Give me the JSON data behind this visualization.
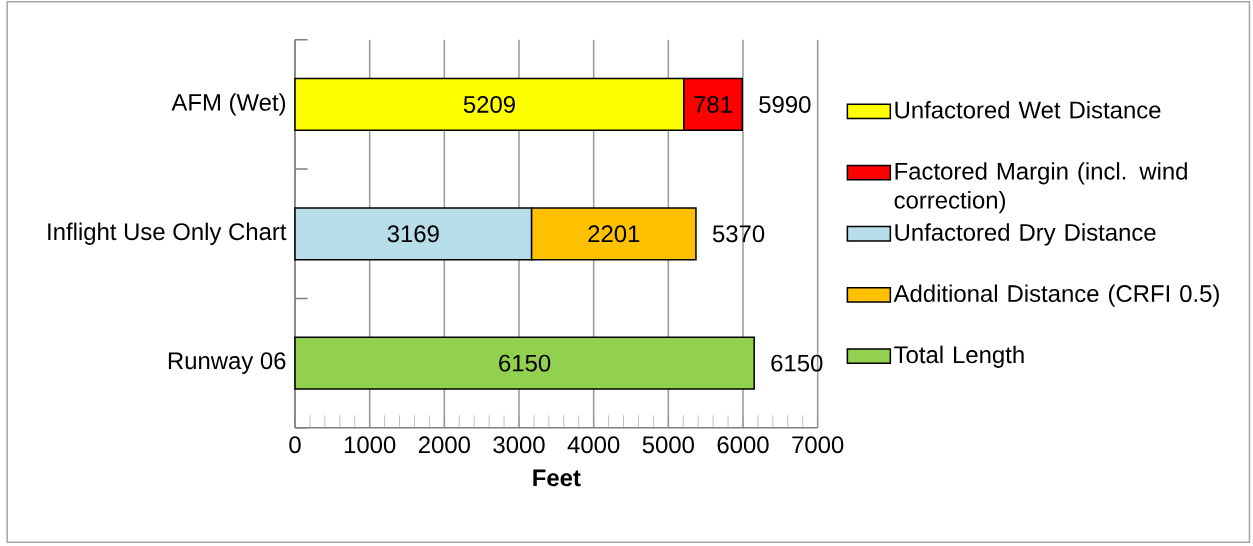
{
  "chart_data": {
    "type": "bar",
    "orientation": "horizontal",
    "stacked": true,
    "categories": [
      "AFM (Wet)",
      "Inflight Use Only Chart",
      "Runway 06"
    ],
    "series": [
      {
        "name": "Unfactored Wet Distance",
        "color": "#ffff00",
        "values": [
          5209,
          null,
          null
        ]
      },
      {
        "name": "Factored Margin (incl. wind correction)",
        "color": "#ff0000",
        "values": [
          781,
          null,
          null
        ]
      },
      {
        "name": "Unfactored Dry Distance",
        "color": "#b7dde8",
        "values": [
          null,
          3169,
          null
        ]
      },
      {
        "name": "Additional Distance (CRFI 0.5)",
        "color": "#ffc000",
        "values": [
          null,
          2201,
          null
        ]
      },
      {
        "name": "Total Length",
        "color": "#92d050",
        "values": [
          null,
          null,
          6150
        ]
      }
    ],
    "totals": [
      "5990",
      "5370",
      "6150"
    ],
    "data_labels": true,
    "xlabel": "Feet",
    "xlim": [
      0,
      7000
    ],
    "xticks": [
      0,
      1000,
      2000,
      3000,
      4000,
      5000,
      6000,
      7000
    ],
    "grid": "x",
    "legend": "right"
  }
}
